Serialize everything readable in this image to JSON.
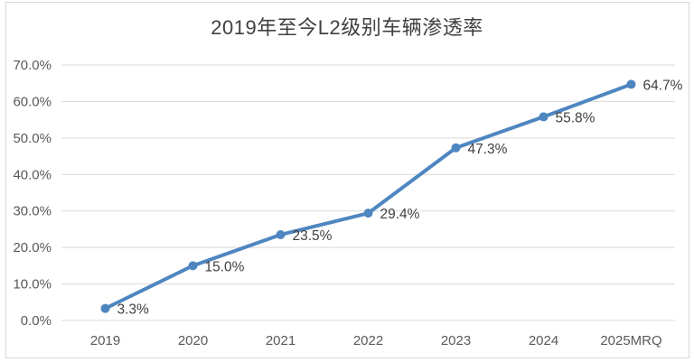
{
  "chart_data": {
    "type": "line",
    "title": "2019年至今L2级别车辆渗透率",
    "categories": [
      "2019",
      "2020",
      "2021",
      "2022",
      "2023",
      "2024",
      "2025MRQ"
    ],
    "values": [
      3.3,
      15.0,
      23.5,
      29.4,
      47.3,
      55.8,
      64.7
    ],
    "data_labels": [
      "3.3%",
      "15.0%",
      "23.5%",
      "29.4%",
      "47.3%",
      "55.8%",
      "64.7%"
    ],
    "xlabel": "",
    "ylabel": "",
    "ylim": [
      0,
      70
    ],
    "ytick_step": 10,
    "ytick_labels": [
      "0.0%",
      "10.0%",
      "20.0%",
      "30.0%",
      "40.0%",
      "50.0%",
      "60.0%",
      "70.0%"
    ],
    "grid": true,
    "legend": "none",
    "marker": "circle",
    "colors": {
      "line": "#4e86c0",
      "marker": "#4e86c0",
      "grid": "#d9d9d9",
      "axis_text": "#595959",
      "label_text": "#404040",
      "title_text": "#404040",
      "border": "#d9d9d9",
      "background": "#ffffff"
    }
  }
}
